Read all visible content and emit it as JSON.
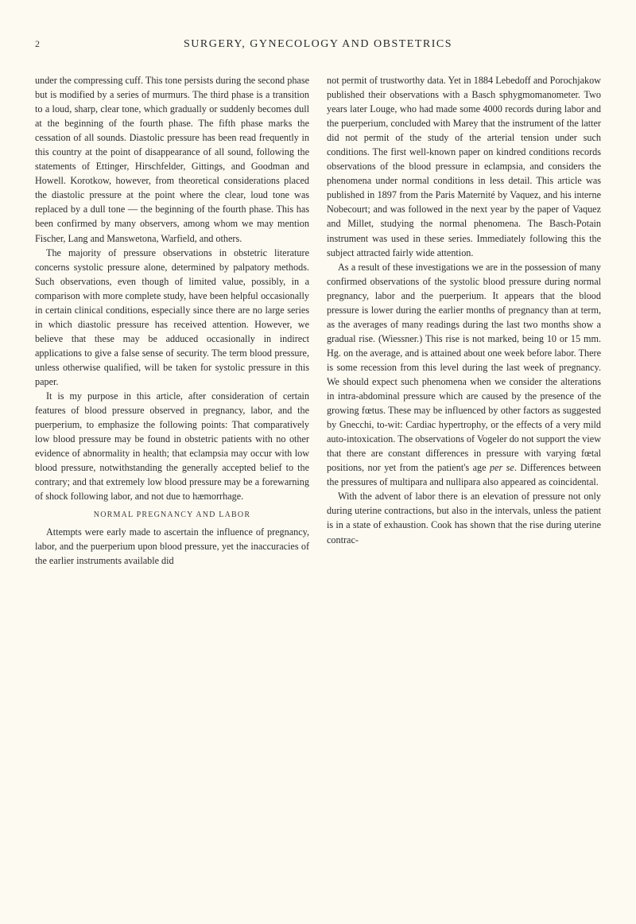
{
  "page": {
    "number": "2",
    "header": "SURGERY, GYNECOLOGY AND OBSTETRICS",
    "background_color": "#fdfaf2",
    "text_color": "#2a2a2a",
    "font_family": "Georgia, 'Times New Roman', serif",
    "body_font_size": 12.2,
    "header_font_size": 14,
    "line_height": 1.48
  },
  "left_column": {
    "p1": "under the compressing cuff. This tone persists during the second phase but is modified by a series of murmurs. The third phase is a transition to a loud, sharp, clear tone, which gradually or suddenly becomes dull at the beginning of the fourth phase. The fifth phase marks the cessation of all sounds. Diastolic pressure has been read frequently in this country at the point of disappearance of all sound, following the statements of Ettinger, Hirschfelder, Gittings, and Goodman and Howell. Korotkow, however, from theoretical considerations placed the diastolic pressure at the point where the clear, loud tone was replaced by a dull tone — the beginning of the fourth phase. This has been confirmed by many observers, among whom we may mention Fischer, Lang and Manswetona, Warfield, and others.",
    "p2": "The majority of pressure observations in obstetric literature concerns systolic pressure alone, determined by palpatory methods. Such observations, even though of limited value, possibly, in a comparison with more complete study, have been helpful occasionally in certain clinical conditions, especially since there are no large series in which diastolic pressure has received attention. However, we believe that these may be adduced occasionally in indirect applications to give a false sense of security. The term blood pressure, unless otherwise qualified, will be taken for systolic pressure in this paper.",
    "p3": "It is my purpose in this article, after consideration of certain features of blood pressure observed in pregnancy, labor, and the puerperium, to emphasize the following points: That comparatively low blood pressure may be found in obstetric patients with no other evidence of abnormality in health; that eclampsia may occur with low blood pressure, notwithstanding the generally accepted belief to the contrary; and that extremely low blood pressure may be a forewarning of shock following labor, and not due to hæmorrhage.",
    "section_heading": "NORMAL PREGNANCY AND LABOR",
    "p4": "Attempts were early made to ascertain the influence of pregnancy, labor, and the puerperium upon blood pressure, yet the inaccuracies of the earlier instruments available did"
  },
  "right_column": {
    "p1": "not permit of trustworthy data. Yet in 1884 Lebedoff and Porochjakow published their observations with a Basch sphygmomanometer. Two years later Louge, who had made some 4000 records during labor and the puerperium, concluded with Marey that the instrument of the latter did not permit of the study of the arterial tension under such conditions. The first well-known paper on kindred conditions records observations of the blood pressure in eclampsia, and considers the phenomena under normal conditions in less detail. This article was published in 1897 from the Paris Maternité by Vaquez, and his interne Nobecourt; and was followed in the next year by the paper of Vaquez and Millet, studying the normal phenomena. The Basch-Potain instrument was used in these series. Immediately following this the subject attracted fairly wide attention.",
    "p2_part1": "As a result of these investigations we are in the possession of many confirmed observations of the systolic blood pressure during normal pregnancy, labor and the puerperium. It appears that the blood pressure is lower during the earlier months of pregnancy than at term, as the averages of many readings during the last two months show a gradual rise. (Wiessner.) This rise is not marked, being 10 or 15 mm. Hg. on the average, and is attained about one week before labor. There is some recession from this level during the last week of pregnancy. We should expect such phenomena when we consider the alterations in intra-abdominal pressure which are caused by the presence of the growing fœtus. These may be influenced by other factors as suggested by Gnecchi, to-wit: Cardiac hypertrophy, or the effects of a very mild auto-intoxication. The observations of Vogeler do not support the view that there are constant differences in pressure with varying fœtal positions, nor yet from the patient's age ",
    "p2_italic": "per se",
    "p2_part2": ". Differences between the pressures of multipara and nullipara also appeared as coincidental.",
    "p3": "With the advent of labor there is an elevation of pressure not only during uterine contractions, but also in the intervals, unless the patient is in a state of exhaustion. Cook has shown that the rise during uterine contrac-"
  }
}
